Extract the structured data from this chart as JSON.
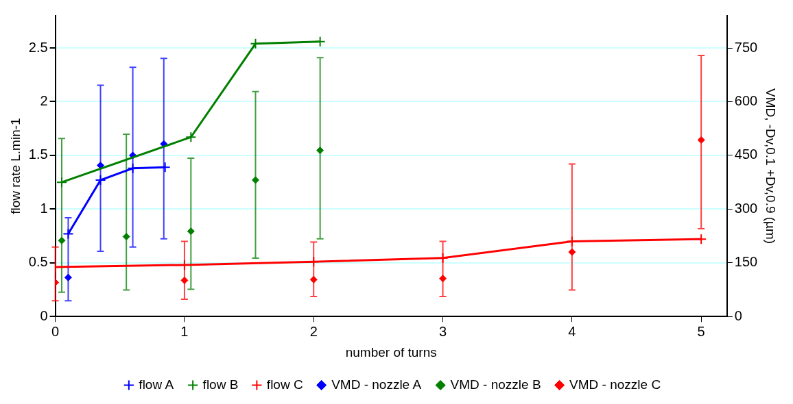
{
  "chart_data": {
    "type": "line",
    "xlabel": "number of turns",
    "ylabel": "flow rate L.min-1",
    "y2label": "VMD, -Dv,0.1 +Dv,0.9 (µm)",
    "xlim": [
      0,
      5.2
    ],
    "xticks": [
      0,
      1,
      2,
      3,
      4,
      5
    ],
    "ylim": [
      0,
      2.8
    ],
    "yticks": [
      0,
      0.5,
      1,
      1.5,
      2,
      2.5
    ],
    "y2lim": [
      0,
      840
    ],
    "y2ticks": [
      0,
      150,
      300,
      450,
      600,
      750
    ],
    "grid": "y",
    "legend": "bottom",
    "series": [
      {
        "name": "flow A",
        "type": "line",
        "marker": "cross",
        "color": "#0000ff",
        "x": [
          0.1,
          0.35,
          0.6,
          0.85
        ],
        "values": [
          0.77,
          1.27,
          1.38,
          1.39
        ]
      },
      {
        "name": "flow B",
        "type": "line",
        "marker": "cross",
        "color": "#008000",
        "x": [
          0.05,
          1.05,
          1.55,
          2.05
        ],
        "values": [
          1.25,
          1.67,
          2.54,
          2.56
        ]
      },
      {
        "name": "flow C",
        "type": "line",
        "marker": "cross",
        "color": "#ff0000",
        "x": [
          0,
          1,
          2,
          3,
          4,
          5
        ],
        "values": [
          0.46,
          0.48,
          0.51,
          0.545,
          0.7,
          0.72
        ]
      },
      {
        "name": "VMD - nozzle A",
        "type": "scatter",
        "marker": "diamond",
        "axis": "y2",
        "color": "#0000ff",
        "x": [
          0.1,
          0.35,
          0.6,
          0.84
        ],
        "values": [
          109,
          422,
          450,
          482
        ],
        "errors": [
          [
            44,
            276
          ],
          [
            182,
            646
          ],
          [
            194,
            696
          ],
          [
            217,
            721
          ]
        ]
      },
      {
        "name": "VMD - nozzle B",
        "type": "scatter",
        "marker": "diamond",
        "axis": "y2",
        "color": "#008000",
        "x": [
          0.05,
          0.55,
          1.05,
          1.55,
          2.05
        ],
        "values": [
          212,
          223,
          238,
          381,
          464
        ],
        "errors": [
          [
            68,
            497
          ],
          [
            74,
            509
          ],
          [
            76,
            442
          ],
          [
            163,
            628
          ],
          [
            217,
            723
          ]
        ]
      },
      {
        "name": "VMD - nozzle C",
        "type": "scatter",
        "marker": "diamond",
        "axis": "y2",
        "color": "#ff0000",
        "x": [
          0,
          1,
          2,
          3,
          4,
          5
        ],
        "values": [
          95,
          101,
          103,
          106,
          180,
          493
        ],
        "errors": [
          [
            44,
            194
          ],
          [
            48,
            210
          ],
          [
            56,
            208
          ],
          [
            56,
            210
          ],
          [
            74,
            426
          ],
          [
            245,
            729
          ]
        ]
      }
    ]
  }
}
